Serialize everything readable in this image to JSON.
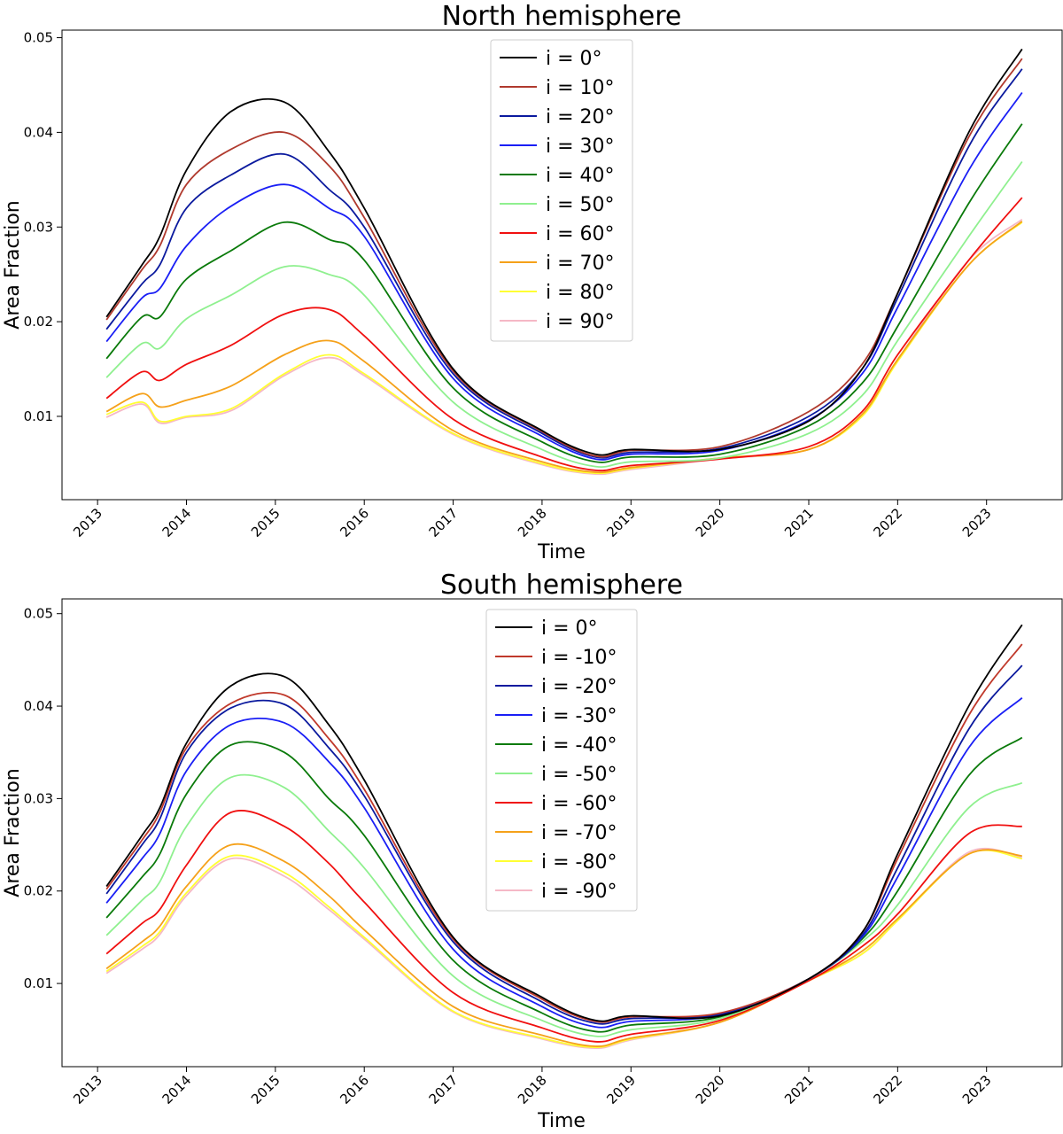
{
  "chart_data": [
    {
      "type": "line",
      "title": "North hemisphere",
      "xlabel": "Time",
      "ylabel": "Area Fraction",
      "xlim": [
        2012.6,
        2023.85
      ],
      "ylim": [
        0.0012,
        0.0508
      ],
      "xticks": [
        2013,
        2014,
        2015,
        2016,
        2017,
        2018,
        2019,
        2020,
        2021,
        2022,
        2023
      ],
      "xtick_labels": [
        "2013",
        "2014",
        "2015",
        "2016",
        "2017",
        "2018",
        "2019",
        "2020",
        "2021",
        "2022",
        "2023"
      ],
      "yticks": [
        0.01,
        0.02,
        0.03,
        0.04,
        0.05
      ],
      "ytick_labels": [
        "0.01",
        "0.02",
        "0.03",
        "0.04",
        "0.05"
      ],
      "legend_position": "top-center",
      "x": [
        2013.1,
        2013.5,
        2013.7,
        2014.0,
        2014.5,
        2015.1,
        2015.6,
        2016.0,
        2017.0,
        2018.0,
        2018.6,
        2019.0,
        2020.0,
        2021.0,
        2021.6,
        2022.0,
        2022.8,
        2023.4
      ],
      "series": [
        {
          "name": "i = 0°",
          "color": "#000000",
          "values": [
            0.0205,
            0.026,
            0.029,
            0.036,
            0.0422,
            0.0432,
            0.038,
            0.032,
            0.015,
            0.0085,
            0.006,
            0.0065,
            0.0065,
            0.0095,
            0.015,
            0.023,
            0.04,
            0.0488
          ]
        },
        {
          "name": "i = 10°",
          "color": "#b03a2e",
          "values": [
            0.0202,
            0.0255,
            0.028,
            0.0345,
            0.0382,
            0.04,
            0.0365,
            0.031,
            0.0148,
            0.0084,
            0.0058,
            0.0064,
            0.0068,
            0.0105,
            0.0155,
            0.023,
            0.0395,
            0.0478
          ]
        },
        {
          "name": "i = 20°",
          "color": "#0b1a9e",
          "values": [
            0.0192,
            0.024,
            0.026,
            0.032,
            0.0355,
            0.0377,
            0.034,
            0.03,
            0.0145,
            0.0082,
            0.0057,
            0.0062,
            0.0066,
            0.01,
            0.015,
            0.0225,
            0.0385,
            0.0467
          ]
        },
        {
          "name": "i = 30°",
          "color": "#1a1ff5",
          "values": [
            0.0179,
            0.0225,
            0.0235,
            0.028,
            0.0322,
            0.0345,
            0.032,
            0.029,
            0.014,
            0.0079,
            0.0055,
            0.006,
            0.0064,
            0.0096,
            0.0145,
            0.0215,
            0.036,
            0.0442
          ]
        },
        {
          "name": "i = 40°",
          "color": "#0a7a0a",
          "values": [
            0.0161,
            0.0205,
            0.0205,
            0.0245,
            0.0275,
            0.0305,
            0.0287,
            0.0265,
            0.013,
            0.0073,
            0.0052,
            0.0057,
            0.006,
            0.009,
            0.0135,
            0.0195,
            0.0325,
            0.0409
          ]
        },
        {
          "name": "i = 50°",
          "color": "#8ff08f",
          "values": [
            0.0141,
            0.0177,
            0.0172,
            0.0203,
            0.0228,
            0.0258,
            0.025,
            0.0228,
            0.0115,
            0.0065,
            0.0047,
            0.0052,
            0.0056,
            0.0082,
            0.0122,
            0.018,
            0.029,
            0.0369
          ]
        },
        {
          "name": "i = 60°",
          "color": "#f01010",
          "values": [
            0.0119,
            0.0147,
            0.0138,
            0.0155,
            0.0175,
            0.0208,
            0.0213,
            0.0185,
            0.0097,
            0.0057,
            0.0043,
            0.0048,
            0.0055,
            0.0068,
            0.0105,
            0.0165,
            0.0265,
            0.0331
          ]
        },
        {
          "name": "i = 70°",
          "color": "#f5a11a",
          "values": [
            0.0105,
            0.0124,
            0.011,
            0.0117,
            0.0132,
            0.0165,
            0.018,
            0.0158,
            0.0085,
            0.0052,
            0.0041,
            0.0046,
            0.0056,
            0.0065,
            0.0102,
            0.016,
            0.026,
            0.0306
          ]
        },
        {
          "name": "i = 80°",
          "color": "#ffff33",
          "values": [
            0.0102,
            0.0115,
            0.0095,
            0.01,
            0.0108,
            0.0145,
            0.0165,
            0.0145,
            0.0082,
            0.005,
            0.004,
            0.0045,
            0.0056,
            0.0065,
            0.01,
            0.0158,
            0.026,
            0.0305
          ]
        },
        {
          "name": "i = 90°",
          "color": "#f5b8c6",
          "values": [
            0.0099,
            0.0113,
            0.0093,
            0.0099,
            0.0106,
            0.0143,
            0.0162,
            0.0143,
            0.0081,
            0.0049,
            0.0039,
            0.0044,
            0.0055,
            0.0065,
            0.0101,
            0.016,
            0.0265,
            0.0308
          ]
        }
      ]
    },
    {
      "type": "line",
      "title": "South hemisphere",
      "xlabel": "Time",
      "ylabel": "Area Fraction",
      "xlim": [
        2012.6,
        2023.85
      ],
      "ylim": [
        0.001,
        0.0516
      ],
      "xticks": [
        2013,
        2014,
        2015,
        2016,
        2017,
        2018,
        2019,
        2020,
        2021,
        2022,
        2023
      ],
      "xtick_labels": [
        "2013",
        "2014",
        "2015",
        "2016",
        "2017",
        "2018",
        "2019",
        "2020",
        "2021",
        "2022",
        "2023"
      ],
      "yticks": [
        0.01,
        0.02,
        0.03,
        0.04,
        0.05
      ],
      "ytick_labels": [
        "0.01",
        "0.02",
        "0.03",
        "0.04",
        "0.05"
      ],
      "legend_position": "top-center",
      "x": [
        2013.1,
        2013.5,
        2013.7,
        2014.0,
        2014.5,
        2015.1,
        2015.6,
        2016.0,
        2017.0,
        2018.0,
        2018.6,
        2019.0,
        2020.0,
        2021.0,
        2021.6,
        2022.0,
        2022.8,
        2023.4
      ],
      "series": [
        {
          "name": "i = 0°",
          "color": "#000000",
          "values": [
            0.0205,
            0.026,
            0.029,
            0.036,
            0.0422,
            0.0432,
            0.038,
            0.032,
            0.015,
            0.0085,
            0.006,
            0.0065,
            0.0065,
            0.0105,
            0.0155,
            0.024,
            0.04,
            0.0488
          ]
        },
        {
          "name": "i = -10°",
          "color": "#c0392b",
          "values": [
            0.0202,
            0.0255,
            0.0285,
            0.0355,
            0.0403,
            0.0412,
            0.0365,
            0.031,
            0.0148,
            0.0083,
            0.0059,
            0.0064,
            0.0068,
            0.0105,
            0.0155,
            0.0235,
            0.039,
            0.0467
          ]
        },
        {
          "name": "i = -20°",
          "color": "#0b1a9e",
          "values": [
            0.0197,
            0.025,
            0.0278,
            0.035,
            0.0398,
            0.0402,
            0.0355,
            0.0303,
            0.0145,
            0.008,
            0.0057,
            0.0062,
            0.0067,
            0.0105,
            0.0152,
            0.0225,
            0.0375,
            0.0444
          ]
        },
        {
          "name": "i = -30°",
          "color": "#1a1ff5",
          "values": [
            0.0187,
            0.0235,
            0.0262,
            0.033,
            0.038,
            0.0382,
            0.034,
            0.029,
            0.0137,
            0.0075,
            0.0053,
            0.0059,
            0.0066,
            0.0105,
            0.015,
            0.0215,
            0.0355,
            0.0409
          ]
        },
        {
          "name": "i = -40°",
          "color": "#0a7a0a",
          "values": [
            0.0171,
            0.0215,
            0.024,
            0.0305,
            0.0358,
            0.035,
            0.03,
            0.026,
            0.0125,
            0.0068,
            0.0048,
            0.0055,
            0.0064,
            0.0105,
            0.0148,
            0.02,
            0.0325,
            0.0366
          ]
        },
        {
          "name": "i = -50°",
          "color": "#8ff08f",
          "values": [
            0.0152,
            0.019,
            0.021,
            0.027,
            0.0323,
            0.0312,
            0.0265,
            0.0225,
            0.0108,
            0.006,
            0.0043,
            0.005,
            0.0062,
            0.0105,
            0.0145,
            0.0185,
            0.029,
            0.0317
          ]
        },
        {
          "name": "i = -60°",
          "color": "#f01010",
          "values": [
            0.0132,
            0.0165,
            0.018,
            0.0228,
            0.0285,
            0.027,
            0.023,
            0.0188,
            0.009,
            0.0052,
            0.0037,
            0.0045,
            0.006,
            0.0103,
            0.014,
            0.0175,
            0.0262,
            0.027
          ]
        },
        {
          "name": "i = -70°",
          "color": "#f5a11a",
          "values": [
            0.0116,
            0.0145,
            0.0162,
            0.0205,
            0.025,
            0.0232,
            0.0195,
            0.0158,
            0.0075,
            0.0044,
            0.0032,
            0.0041,
            0.0058,
            0.0103,
            0.0135,
            0.017,
            0.024,
            0.0238
          ]
        },
        {
          "name": "i = -80°",
          "color": "#ffff33",
          "values": [
            0.0113,
            0.014,
            0.0156,
            0.0198,
            0.0238,
            0.022,
            0.0183,
            0.015,
            0.007,
            0.0041,
            0.0031,
            0.004,
            0.0058,
            0.0103,
            0.0132,
            0.0168,
            0.024,
            0.0235
          ]
        },
        {
          "name": "i = -90°",
          "color": "#f5b8c6",
          "values": [
            0.0111,
            0.0137,
            0.0153,
            0.0195,
            0.0235,
            0.0216,
            0.018,
            0.0148,
            0.0069,
            0.004,
            0.003,
            0.0039,
            0.0058,
            0.0103,
            0.0132,
            0.0168,
            0.0242,
            0.0236
          ]
        }
      ]
    }
  ]
}
